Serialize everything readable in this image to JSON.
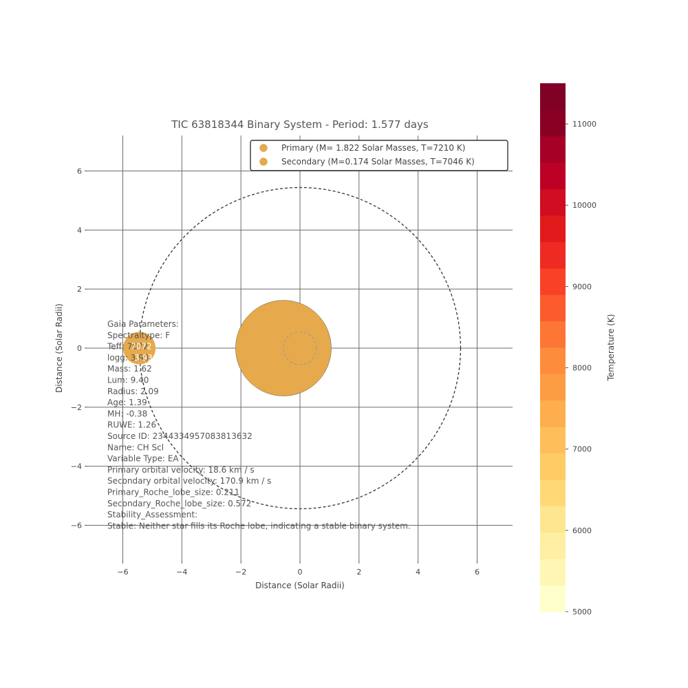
{
  "chart_data": {
    "type": "scatter",
    "title": "TIC 63818344 Binary System - Period: 1.577 days",
    "xlabel": "Distance (Solar Radii)",
    "ylabel": "Distance (Solar Radii)",
    "xlim": [
      -7.2,
      7.2
    ],
    "ylim": [
      -7.2,
      7.2
    ],
    "xticks": [
      -6,
      -4,
      -2,
      0,
      2,
      4,
      6
    ],
    "yticks": [
      -6,
      -4,
      -2,
      0,
      2,
      4,
      6
    ],
    "tick_labels": [
      "−6",
      "−4",
      "−2",
      "0",
      "2",
      "4",
      "6"
    ],
    "grid": true,
    "legend_placement": "top-right",
    "series": [
      {
        "name": "Primary (M= 1.822  Solar Masses, T=7210 K)",
        "x": -0.56,
        "y": 0.0,
        "radius": 1.62,
        "color": "#e6aa4c"
      },
      {
        "name": "Secondary (M=0.174 Solar Masses, T=7046 K)",
        "x": -5.44,
        "y": 0.0,
        "radius": 0.55,
        "color": "#e6aa4c"
      }
    ],
    "orbits": [
      {
        "style": "dashed",
        "center_x": 0,
        "center_y": 0,
        "radius": 5.44,
        "color": "#333333"
      },
      {
        "style": "dashed",
        "center_x": 0,
        "center_y": 0,
        "radius": 0.56,
        "color": "#999999"
      }
    ],
    "star_labels": {
      "teff": "7072",
      "logg": "3.93"
    },
    "info_lines": [
      "Gaia Parameters:",
      "Spectraltype: F",
      "Teff: 7072",
      "logg: 3.93",
      "Mass: 1.62",
      "Lum: 9.40",
      "Radius: 2.09",
      "Age: 1.39",
      "MH: -0.38",
      "RUWE: 1.26",
      "Source ID: 2344334957083813632",
      "Name: CH Scl",
      "Variable Type: EA",
      "Primary orbital velocity: 18.6 km / s",
      "Secondary orbital velocity: 170.9 km / s",
      "Primary_Roche_lobe_size: 0.211",
      "Secondary_Roche_lobe_size: 0.572",
      "Stability_Assessment:",
      "Stable: Neither star fills its Roche lobe, indicating a stable binary system."
    ],
    "colorbar": {
      "label": "Temperature (K)",
      "min": 5000,
      "max": 11500,
      "ticks": [
        5000,
        6000,
        7000,
        8000,
        9000,
        10000,
        11000
      ],
      "tick_labels": [
        "5000",
        "6000",
        "7000",
        "8000",
        "9000",
        "10000",
        "11000"
      ],
      "colors": [
        "#ffffcc",
        "#fff6b5",
        "#feefa3",
        "#fee691",
        "#fed976",
        "#fecb65",
        "#febf5a",
        "#feae4c",
        "#fd9d43",
        "#fd8d3c",
        "#fd7635",
        "#fc5b2e",
        "#f84127",
        "#ef2a22",
        "#e31a1c",
        "#d00d21",
        "#bd0026",
        "#a60026",
        "#8a0025",
        "#800026"
      ]
    }
  }
}
